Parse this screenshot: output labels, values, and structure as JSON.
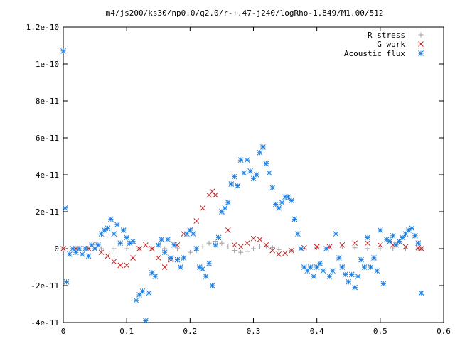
{
  "chart_data": {
    "type": "scatter",
    "title": "m4/js200/ks30/np0.0/q2.0/r-+.47-j240/logRho-1.849/M1.00/512",
    "xlabel": "",
    "ylabel": "",
    "xlim": [
      0,
      0.6
    ],
    "ylim": [
      -4e-11,
      1.2e-10
    ],
    "x_ticks": [
      "0",
      "0.1",
      "0.2",
      "0.3",
      "0.4",
      "0.5",
      "0.6"
    ],
    "y_ticks": [
      "-4e-11",
      "-2e-11",
      "0",
      "2e-11",
      "4e-11",
      "6e-11",
      "8e-11",
      "1e-10",
      "1.2e-10"
    ],
    "legend_position": "top-right",
    "grid": false,
    "series": [
      {
        "name": "R stress",
        "marker": "plus",
        "color": "#a0a0a0",
        "x": [
          0.0,
          0.02,
          0.04,
          0.06,
          0.08,
          0.1,
          0.12,
          0.14,
          0.16,
          0.18,
          0.2,
          0.21,
          0.22,
          0.23,
          0.24,
          0.25,
          0.26,
          0.27,
          0.28,
          0.29,
          0.3,
          0.31,
          0.32,
          0.33,
          0.34,
          0.36,
          0.38,
          0.4,
          0.42,
          0.44,
          0.46,
          0.48,
          0.5,
          0.52,
          0.54,
          0.56,
          0.565
        ],
        "y": [
          0,
          0,
          0,
          0,
          0,
          0,
          0,
          0,
          0,
          0,
          -2e-12,
          -1e-12,
          1e-12,
          3e-12,
          4e-12,
          3e-12,
          1e-12,
          -1e-12,
          -2e-12,
          -1.5e-12,
          0,
          1e-12,
          1.5e-12,
          5e-13,
          -5e-13,
          -1e-12,
          0,
          5e-13,
          1e-12,
          1e-12,
          5e-13,
          0,
          0,
          0,
          0,
          0,
          0
        ]
      },
      {
        "name": "G work",
        "marker": "cross",
        "color": "#cc2020",
        "x": [
          0.0,
          0.02,
          0.04,
          0.05,
          0.06,
          0.07,
          0.08,
          0.09,
          0.1,
          0.11,
          0.12,
          0.13,
          0.14,
          0.15,
          0.16,
          0.17,
          0.18,
          0.19,
          0.2,
          0.21,
          0.22,
          0.23,
          0.235,
          0.24,
          0.25,
          0.26,
          0.27,
          0.28,
          0.29,
          0.3,
          0.31,
          0.32,
          0.33,
          0.34,
          0.35,
          0.36,
          0.38,
          0.4,
          0.42,
          0.44,
          0.46,
          0.48,
          0.5,
          0.52,
          0.54,
          0.56,
          0.565
        ],
        "y": [
          0,
          0,
          0,
          0,
          -2e-12,
          -4e-12,
          -7e-12,
          -9e-12,
          -9e-12,
          -5e-12,
          0,
          2e-12,
          0,
          -5e-12,
          -1e-11,
          -6e-12,
          2e-12,
          8e-12,
          1e-11,
          1.5e-11,
          2.2e-11,
          2.9e-11,
          3.1e-11,
          2.9e-11,
          2e-11,
          1e-11,
          2e-12,
          1e-12,
          3e-12,
          5.5e-12,
          5e-12,
          2e-12,
          -1e-12,
          -3e-12,
          -2.5e-12,
          -1e-12,
          5e-13,
          1e-12,
          1e-12,
          2e-12,
          3e-12,
          3e-12,
          2e-12,
          2e-12,
          1e-12,
          5e-13,
          0
        ]
      },
      {
        "name": "Acoustic flux",
        "marker": "star",
        "color": "#1a7ee0",
        "x": [
          0.0,
          0.003,
          0.005,
          0.01,
          0.015,
          0.02,
          0.025,
          0.03,
          0.035,
          0.04,
          0.045,
          0.05,
          0.055,
          0.06,
          0.065,
          0.07,
          0.075,
          0.08,
          0.085,
          0.09,
          0.095,
          0.1,
          0.105,
          0.11,
          0.115,
          0.12,
          0.125,
          0.13,
          0.135,
          0.14,
          0.145,
          0.15,
          0.155,
          0.16,
          0.165,
          0.17,
          0.175,
          0.18,
          0.185,
          0.19,
          0.195,
          0.2,
          0.205,
          0.21,
          0.215,
          0.22,
          0.225,
          0.23,
          0.235,
          0.24,
          0.245,
          0.25,
          0.255,
          0.26,
          0.265,
          0.27,
          0.275,
          0.28,
          0.285,
          0.29,
          0.295,
          0.3,
          0.305,
          0.31,
          0.315,
          0.32,
          0.325,
          0.33,
          0.335,
          0.34,
          0.345,
          0.35,
          0.355,
          0.36,
          0.365,
          0.37,
          0.375,
          0.38,
          0.385,
          0.39,
          0.395,
          0.4,
          0.405,
          0.41,
          0.415,
          0.42,
          0.425,
          0.43,
          0.435,
          0.44,
          0.445,
          0.45,
          0.455,
          0.46,
          0.465,
          0.47,
          0.475,
          0.48,
          0.485,
          0.49,
          0.495,
          0.5,
          0.505,
          0.51,
          0.515,
          0.52,
          0.525,
          0.53,
          0.535,
          0.54,
          0.545,
          0.55,
          0.555,
          0.56,
          0.565
        ],
        "y": [
          1.07e-10,
          2.2e-11,
          -1.8e-11,
          -3e-12,
          0,
          -2e-12,
          0,
          -3e-12,
          0,
          -4e-12,
          2e-12,
          0,
          2e-12,
          8e-12,
          1e-11,
          1.1e-11,
          1.6e-11,
          8e-12,
          1.3e-11,
          3e-12,
          1e-11,
          6e-12,
          3e-12,
          4e-12,
          -2.8e-11,
          -2.5e-11,
          -2.3e-11,
          -3.9e-11,
          -2.4e-11,
          -1.3e-11,
          -1.5e-11,
          2e-12,
          5e-12,
          -2e-12,
          5e-12,
          -5e-12,
          2e-12,
          -6e-12,
          -1e-11,
          -5e-12,
          8e-12,
          1e-11,
          8e-12,
          0,
          -1e-11,
          -1.1e-11,
          -1.5e-11,
          -8e-12,
          -2e-11,
          2e-12,
          6e-12,
          2e-11,
          2.2e-11,
          2.5e-11,
          3.5e-11,
          3.9e-11,
          3.4e-11,
          4.8e-11,
          4.1e-11,
          4.8e-11,
          4.2e-11,
          3.8e-11,
          4e-11,
          5.2e-11,
          5.5e-11,
          4.6e-11,
          4.1e-11,
          3.3e-11,
          2.4e-11,
          2.2e-11,
          2.5e-11,
          2.8e-11,
          2.8e-11,
          2.6e-11,
          1.6e-11,
          8e-12,
          0,
          -1e-11,
          -1.2e-11,
          -1e-11,
          -1.5e-11,
          -1e-11,
          -8e-12,
          -1.2e-11,
          0,
          -1.5e-11,
          -1.2e-11,
          8e-12,
          -5e-12,
          -1e-11,
          -1.4e-11,
          -1.8e-11,
          -1.4e-11,
          -2.1e-11,
          -1.5e-11,
          -6e-12,
          -1e-11,
          6e-12,
          -1e-11,
          -5e-12,
          -1.2e-11,
          1e-11,
          -1.9e-11,
          5e-12,
          4e-12,
          7e-12,
          2e-12,
          4e-12,
          6e-12,
          8e-12,
          1e-11,
          1.1e-11,
          7e-12,
          3e-12,
          -2.4e-11
        ]
      }
    ]
  }
}
